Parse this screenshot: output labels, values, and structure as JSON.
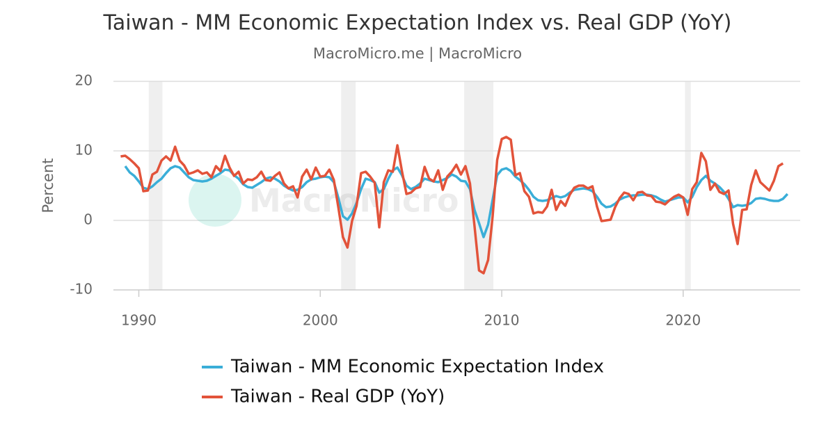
{
  "chart_data": {
    "type": "line",
    "title": "Taiwan - MM Economic Expectation Index vs. Real GDP (YoY)",
    "subtitle": "MacroMicro.me | MacroMicro",
    "ylabel": "Percent",
    "watermark": "MacroMicro",
    "xlim": [
      1988.6,
      2026.45
    ],
    "ylim": [
      -10,
      20
    ],
    "xticks": [
      1990,
      2000,
      2010,
      2020
    ],
    "yticks": [
      -10,
      0,
      10,
      20
    ],
    "grid": true,
    "legend": "bottom",
    "shaded_periods": [
      [
        1990.55,
        1991.3
      ],
      [
        2001.15,
        2001.95
      ],
      [
        2007.93,
        2009.54
      ],
      [
        2020.1,
        2020.42
      ]
    ],
    "shade_color": "#efefef",
    "x": [
      1989,
      1989.25,
      1989.5,
      1989.75,
      1990,
      1990.25,
      1990.5,
      1990.75,
      1991,
      1991.25,
      1991.5,
      1991.75,
      1992,
      1992.25,
      1992.5,
      1992.75,
      1993,
      1993.25,
      1993.5,
      1993.75,
      1994,
      1994.25,
      1994.5,
      1994.75,
      1995,
      1995.25,
      1995.5,
      1995.75,
      1996,
      1996.25,
      1996.5,
      1996.75,
      1997,
      1997.25,
      1997.5,
      1997.75,
      1998,
      1998.25,
      1998.5,
      1998.75,
      1999,
      1999.25,
      1999.5,
      1999.75,
      2000,
      2000.25,
      2000.5,
      2000.75,
      2001,
      2001.25,
      2001.5,
      2001.75,
      2002,
      2002.25,
      2002.5,
      2002.75,
      2003,
      2003.25,
      2003.5,
      2003.75,
      2004,
      2004.25,
      2004.5,
      2004.75,
      2005,
      2005.25,
      2005.5,
      2005.75,
      2006,
      2006.25,
      2006.5,
      2006.75,
      2007,
      2007.25,
      2007.5,
      2007.75,
      2008,
      2008.25,
      2008.5,
      2008.75,
      2009,
      2009.25,
      2009.5,
      2009.75,
      2010,
      2010.25,
      2010.5,
      2010.75,
      2011,
      2011.25,
      2011.5,
      2011.75,
      2012,
      2012.25,
      2012.5,
      2012.75,
      2013,
      2013.25,
      2013.5,
      2013.75,
      2014,
      2014.25,
      2014.5,
      2014.75,
      2015,
      2015.25,
      2015.5,
      2015.75,
      2016,
      2016.25,
      2016.5,
      2016.75,
      2017,
      2017.25,
      2017.5,
      2017.75,
      2018,
      2018.25,
      2018.5,
      2018.75,
      2019,
      2019.25,
      2019.5,
      2019.75,
      2020,
      2020.25,
      2020.5,
      2020.75,
      2021,
      2021.25,
      2021.5,
      2021.75,
      2022,
      2022.25,
      2022.5,
      2022.75,
      2023,
      2023.25,
      2023.5,
      2023.75,
      2024,
      2024.25,
      2024.5,
      2024.75,
      2025,
      2025.25,
      2025.5,
      2025.75
    ],
    "series": [
      {
        "name": "Taiwan - MM Economic Expectation Index",
        "color": "#3aaed8",
        "values": [
          null,
          7.8,
          6.9,
          6.4,
          5.6,
          4.7,
          4.5,
          4.9,
          5.5,
          6.0,
          6.8,
          7.5,
          7.8,
          7.6,
          6.9,
          6.2,
          5.8,
          5.7,
          5.6,
          5.7,
          6.0,
          6.4,
          6.8,
          7.3,
          7.2,
          6.5,
          6.0,
          5.2,
          4.8,
          4.7,
          5.1,
          5.5,
          6.0,
          6.2,
          6.0,
          5.6,
          5.0,
          4.6,
          4.3,
          4.4,
          4.8,
          5.5,
          5.9,
          6.0,
          6.2,
          6.3,
          6.2,
          5.5,
          3.2,
          0.6,
          0.1,
          1.0,
          2.5,
          4.5,
          6.0,
          5.8,
          5.5,
          4.0,
          4.5,
          6.0,
          7.2,
          7.6,
          6.5,
          5.0,
          4.5,
          4.8,
          5.3,
          6.0,
          5.8,
          5.6,
          5.5,
          5.8,
          6.1,
          6.6,
          6.3,
          5.7,
          5.6,
          4.5,
          1.5,
          -0.4,
          -2.4,
          -0.6,
          3.0,
          6.5,
          7.3,
          7.5,
          7.1,
          6.3,
          5.8,
          5.2,
          4.4,
          3.4,
          2.9,
          2.8,
          2.9,
          3.2,
          3.5,
          3.3,
          3.5,
          4.0,
          4.4,
          4.5,
          4.6,
          4.5,
          4.2,
          3.4,
          2.4,
          1.9,
          2.0,
          2.4,
          3.0,
          3.3,
          3.5,
          3.6,
          3.6,
          3.7,
          3.7,
          3.6,
          3.4,
          3.0,
          2.7,
          2.9,
          3.1,
          3.3,
          3.3,
          2.6,
          3.4,
          4.8,
          5.8,
          6.4,
          5.7,
          5.3,
          4.8,
          4.1,
          3.1,
          1.9,
          2.2,
          2.1,
          2.2,
          2.5,
          3.1,
          3.2,
          3.1,
          2.9,
          2.8,
          2.8,
          3.1,
          3.8
        ]
      },
      {
        "name": "Taiwan - Real GDP (YoY)",
        "color": "#e2533a",
        "values": [
          9.2,
          9.3,
          8.8,
          8.2,
          7.5,
          4.2,
          4.3,
          6.6,
          7.0,
          8.6,
          9.2,
          8.6,
          10.6,
          8.6,
          7.9,
          6.7,
          6.9,
          7.2,
          6.7,
          6.9,
          6.2,
          7.8,
          7.1,
          9.3,
          7.6,
          6.4,
          7.0,
          5.3,
          5.9,
          5.8,
          6.2,
          7.0,
          5.8,
          5.7,
          6.4,
          6.9,
          5.3,
          4.6,
          4.9,
          3.3,
          6.3,
          7.3,
          5.9,
          7.6,
          6.3,
          6.4,
          7.3,
          5.8,
          1.8,
          -2.4,
          -3.9,
          -0.1,
          2.1,
          6.8,
          7.0,
          6.3,
          5.4,
          -1.0,
          5.5,
          7.2,
          7.0,
          10.8,
          7.1,
          3.8,
          4.0,
          4.6,
          4.8,
          7.7,
          6.0,
          5.6,
          7.2,
          4.4,
          6.3,
          7.0,
          8.0,
          6.6,
          7.8,
          5.3,
          -0.8,
          -7.2,
          -7.6,
          -5.7,
          0.6,
          8.7,
          11.7,
          12.0,
          11.6,
          6.5,
          6.8,
          4.2,
          3.4,
          1.0,
          1.2,
          1.1,
          2.0,
          4.4,
          1.5,
          2.8,
          2.1,
          3.7,
          4.7,
          5.0,
          5.0,
          4.6,
          4.9,
          2.0,
          -0.1,
          0.0,
          0.1,
          1.9,
          3.2,
          4.0,
          3.8,
          2.9,
          4.0,
          4.1,
          3.6,
          3.5,
          2.7,
          2.6,
          2.3,
          2.9,
          3.4,
          3.7,
          3.3,
          0.8,
          4.5,
          5.5,
          9.7,
          8.5,
          4.4,
          5.3,
          4.1,
          3.8,
          4.3,
          -0.5,
          -3.4,
          1.5,
          1.6,
          5.1,
          7.2,
          5.5,
          4.9,
          4.3,
          5.7,
          7.8,
          8.2,
          null
        ]
      }
    ]
  }
}
